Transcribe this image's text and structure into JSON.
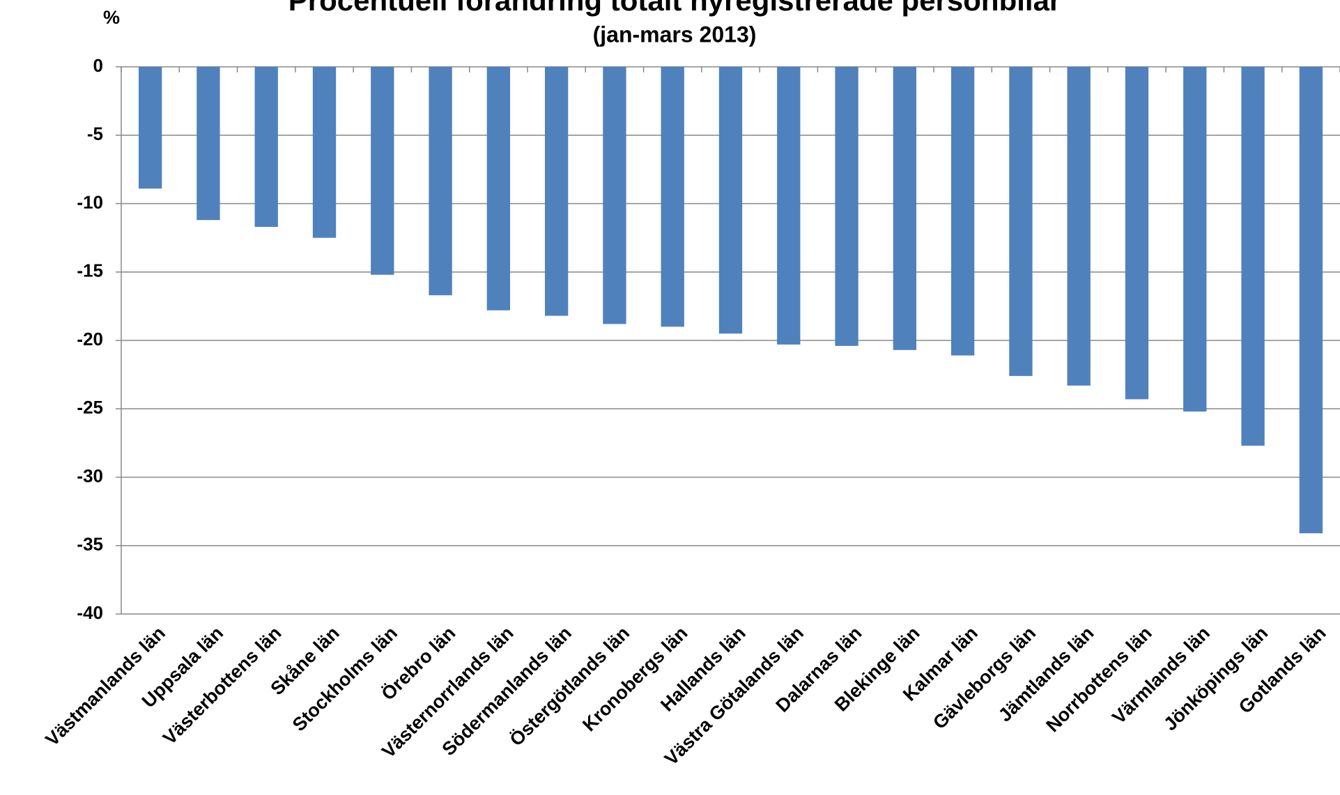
{
  "chart_data": {
    "type": "bar",
    "title": "Procentuell förändring totalt nyregistrerade personbilar",
    "subtitle": "(jan-mars 2013)",
    "y_label": "%",
    "categories": [
      "Västmanlands län",
      "Uppsala län",
      "Västerbottens län",
      "Skåne län",
      "Stockholms län",
      "Örebro län",
      "Västernorrlands län",
      "Södermanlands län",
      "Östergötlands län",
      "Kronobergs län",
      "Hallands län",
      "Västra Götalands län",
      "Dalarnas län",
      "Blekinge län",
      "Kalmar län",
      "Gävleborgs län",
      "Jämtlands län",
      "Norrbottens län",
      "Värmlands län",
      "Jönköpings län",
      "Gotlands län"
    ],
    "values": [
      -8.9,
      -11.2,
      -11.7,
      -12.5,
      -15.2,
      -16.7,
      -17.8,
      -18.2,
      -18.8,
      -19.0,
      -19.5,
      -20.3,
      -20.4,
      -20.7,
      -21.1,
      -22.6,
      -23.3,
      -24.3,
      -25.2,
      -27.7,
      -34.1
    ],
    "color": "#4f81bd",
    "ylim": [
      -40,
      0
    ],
    "yticks": [
      0,
      -5,
      -10,
      -15,
      -20,
      -25,
      -30,
      -35,
      -40
    ],
    "grid": true
  }
}
